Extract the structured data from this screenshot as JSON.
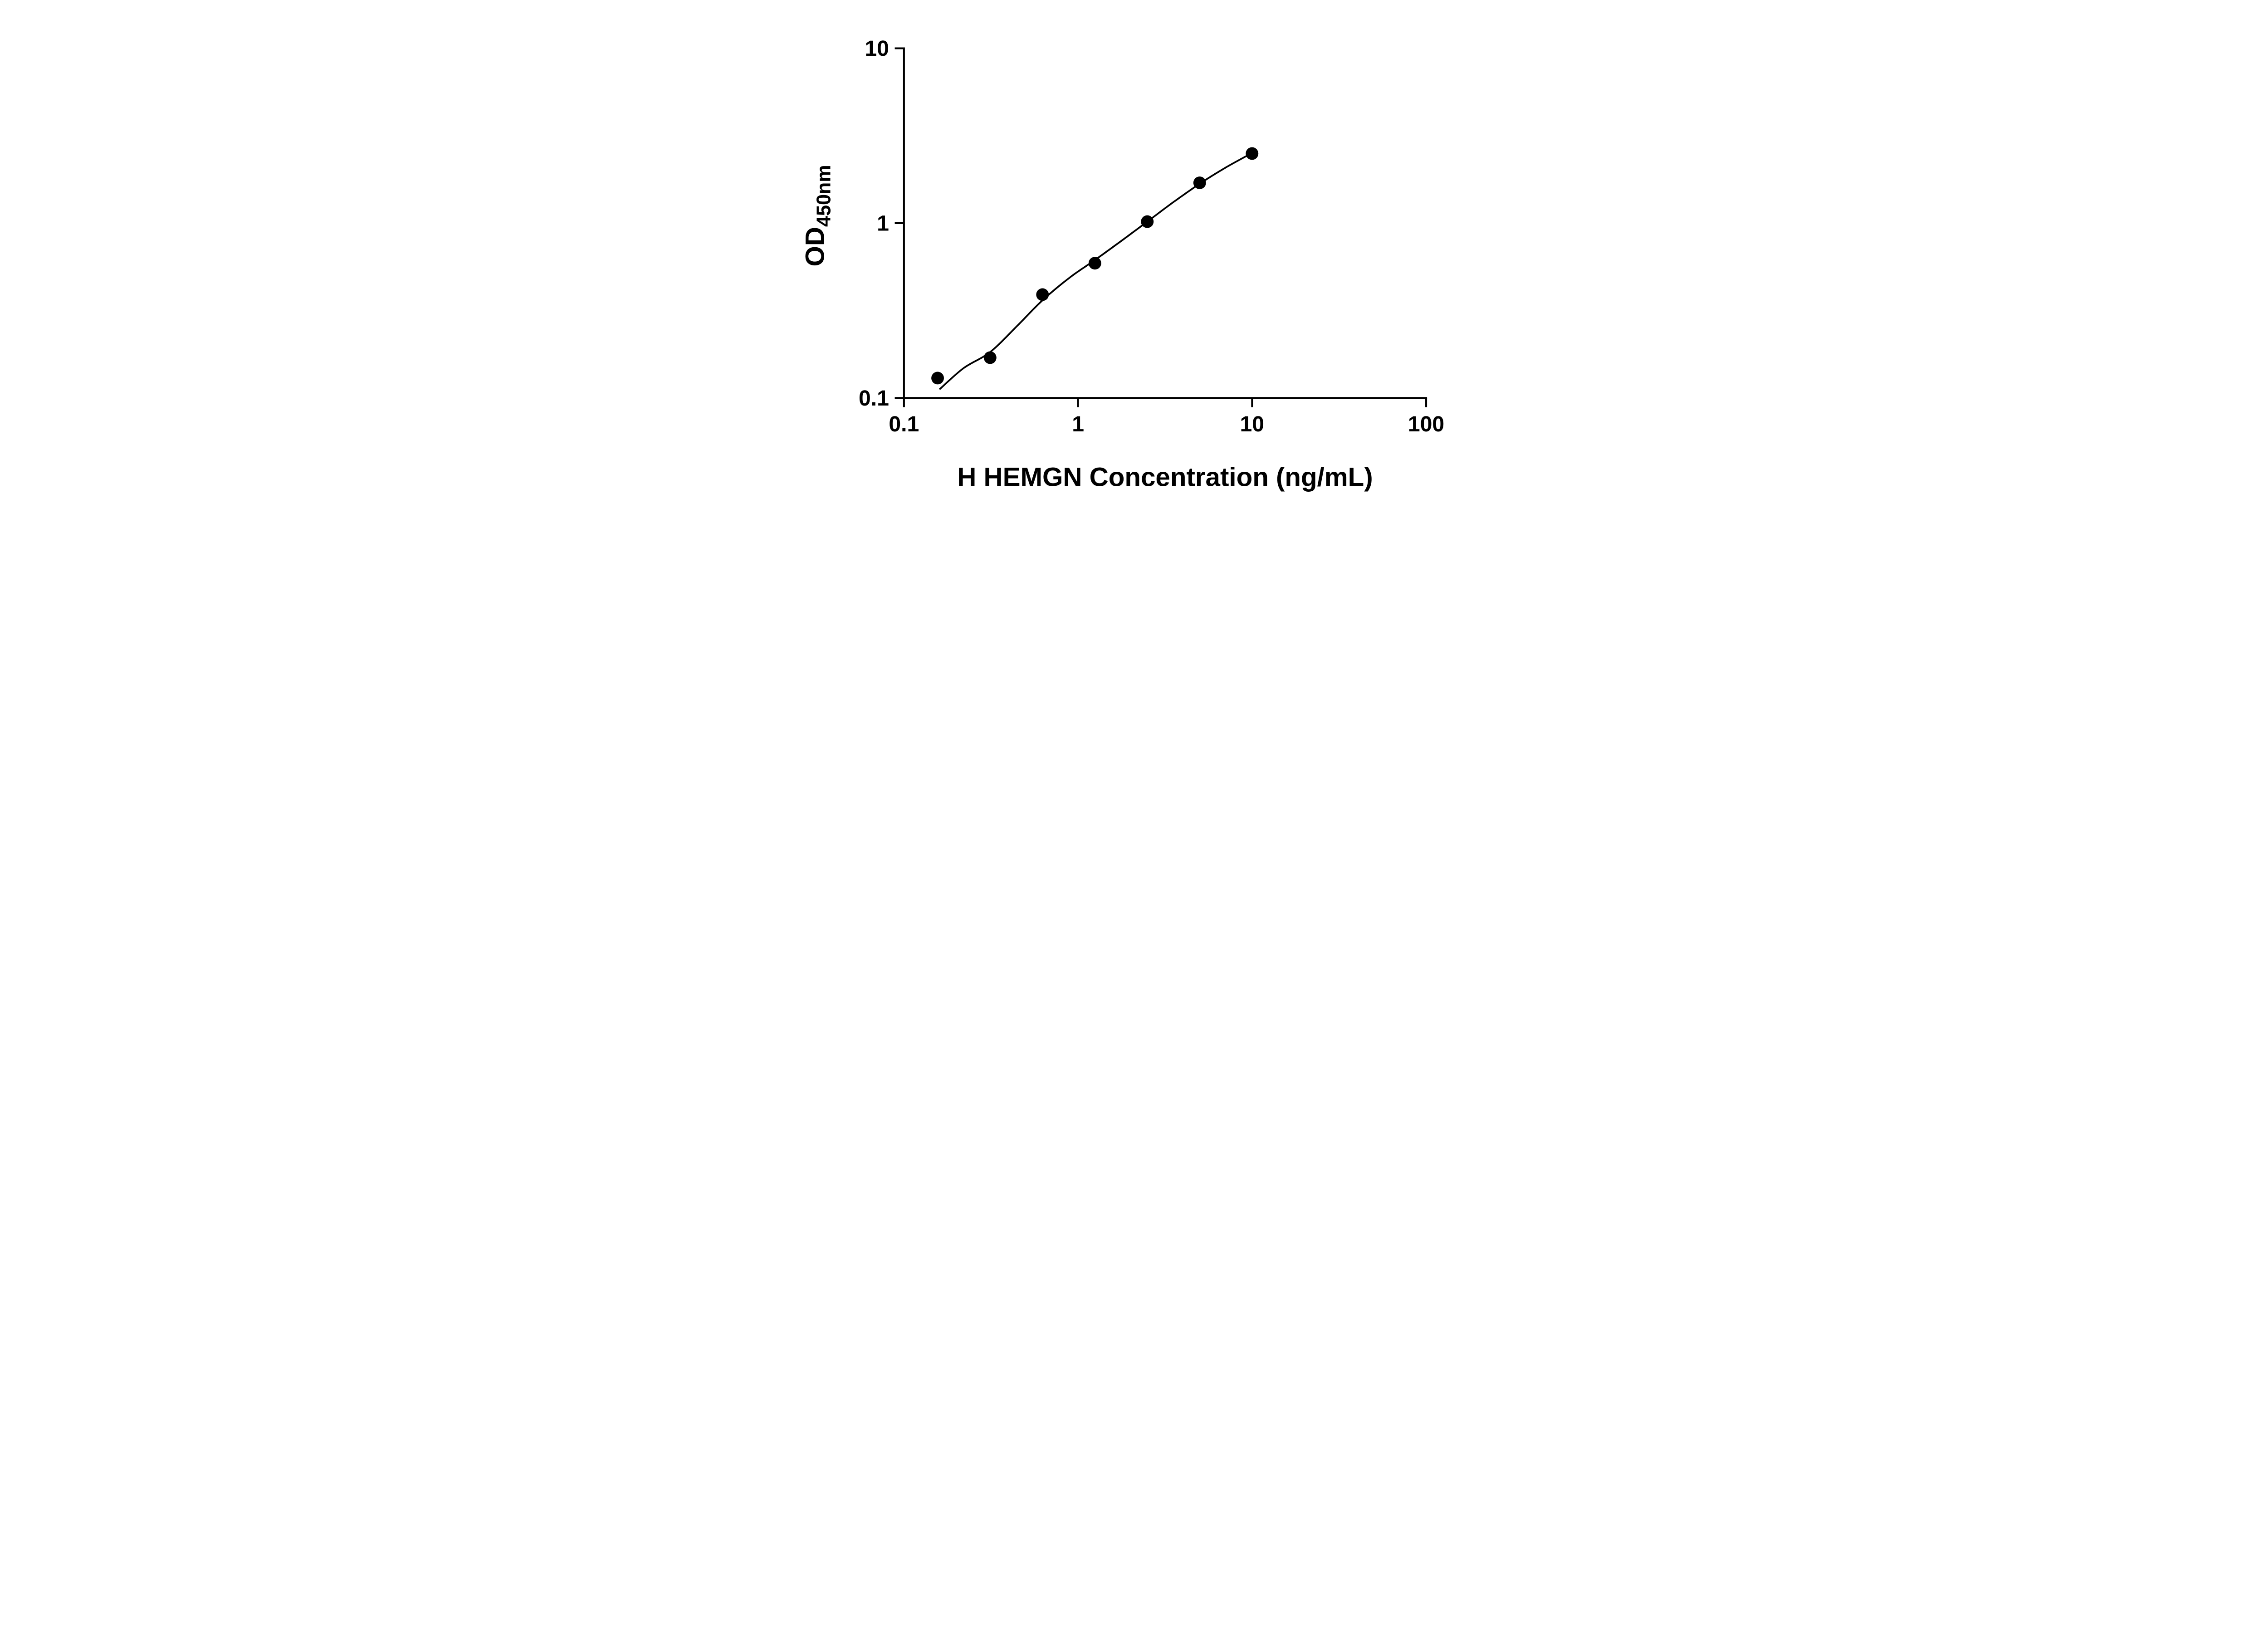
{
  "figure": {
    "background": "#ffffff"
  },
  "chart_data": {
    "type": "scatter",
    "title": "",
    "xlabel": "H HEMGN Concentration (ng/mL)",
    "ylabel": "OD",
    "ylabel_sub": "450nm",
    "x_scale": "log",
    "y_scale": "log",
    "xlim": [
      0.1,
      100
    ],
    "ylim": [
      0.1,
      10
    ],
    "grid": false,
    "legend": false,
    "axis_color": "#000000",
    "marker": {
      "shape": "circle",
      "color": "#000000"
    },
    "line_color": "#000000",
    "x_ticks": [
      {
        "value": 0.1,
        "label": "0.1"
      },
      {
        "value": 1,
        "label": "1"
      },
      {
        "value": 10,
        "label": "10"
      },
      {
        "value": 100,
        "label": "100"
      }
    ],
    "y_ticks": [
      {
        "value": 0.1,
        "label": "0.1"
      },
      {
        "value": 1,
        "label": "1"
      },
      {
        "value": 10,
        "label": "10"
      }
    ],
    "points": [
      {
        "x": 0.156,
        "y": 0.13
      },
      {
        "x": 0.3125,
        "y": 0.17
      },
      {
        "x": 0.625,
        "y": 0.39
      },
      {
        "x": 1.25,
        "y": 0.59
      },
      {
        "x": 2.5,
        "y": 1.02
      },
      {
        "x": 5,
        "y": 1.7
      },
      {
        "x": 10,
        "y": 2.5
      }
    ],
    "fit_curve": [
      [
        0.16,
        0.112
      ],
      [
        0.22,
        0.148
      ],
      [
        0.3125,
        0.183
      ],
      [
        0.45,
        0.26
      ],
      [
        0.625,
        0.362
      ],
      [
        0.9,
        0.49
      ],
      [
        1.25,
        0.615
      ],
      [
        1.8,
        0.8
      ],
      [
        2.5,
        1.02
      ],
      [
        3.5,
        1.31
      ],
      [
        5,
        1.68
      ],
      [
        7,
        2.07
      ],
      [
        10,
        2.52
      ]
    ]
  }
}
